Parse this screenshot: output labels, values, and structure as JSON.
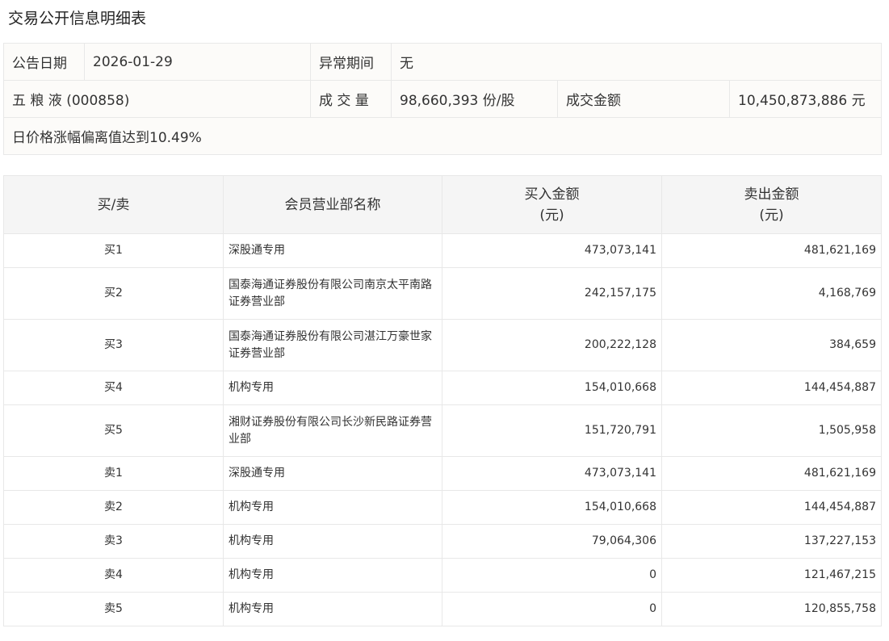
{
  "title": "交易公开信息明细表",
  "info": {
    "date_label": "公告日期",
    "date": "2026-01-29",
    "period_label": "异常期间",
    "period": "无",
    "stock": "五 粮 液 (000858)",
    "volume_label": "成 交 量",
    "volume": "98,660,393 份/股",
    "amount_label": "成交金额",
    "amount": "10,450,873,886 元",
    "reason": "日价格涨幅偏离值达到10.49%"
  },
  "table": {
    "headers": [
      "买/卖",
      "会员营业部名称",
      "买入金额\n(元)",
      "卖出金额\n(元)"
    ],
    "rows": [
      {
        "side": "买1",
        "name": "深股通专用",
        "buy": "473,073,141",
        "sell": "481,621,169"
      },
      {
        "side": "买2",
        "name": "国泰海通证券股份有限公司南京太平南路证券营业部",
        "buy": "242,157,175",
        "sell": "4,168,769"
      },
      {
        "side": "买3",
        "name": "国泰海通证券股份有限公司湛江万豪世家证券营业部",
        "buy": "200,222,128",
        "sell": "384,659"
      },
      {
        "side": "买4",
        "name": "机构专用",
        "buy": "154,010,668",
        "sell": "144,454,887"
      },
      {
        "side": "买5",
        "name": "湘财证券股份有限公司长沙新民路证券营业部",
        "buy": "151,720,791",
        "sell": "1,505,958"
      },
      {
        "side": "卖1",
        "name": "深股通专用",
        "buy": "473,073,141",
        "sell": "481,621,169"
      },
      {
        "side": "卖2",
        "name": "机构专用",
        "buy": "154,010,668",
        "sell": "144,454,887"
      },
      {
        "side": "卖3",
        "name": "机构专用",
        "buy": "79,064,306",
        "sell": "137,227,153"
      },
      {
        "side": "卖4",
        "name": "机构专用",
        "buy": "0",
        "sell": "121,467,215"
      },
      {
        "side": "卖5",
        "name": "机构专用",
        "buy": "0",
        "sell": "120,855,758"
      }
    ]
  }
}
